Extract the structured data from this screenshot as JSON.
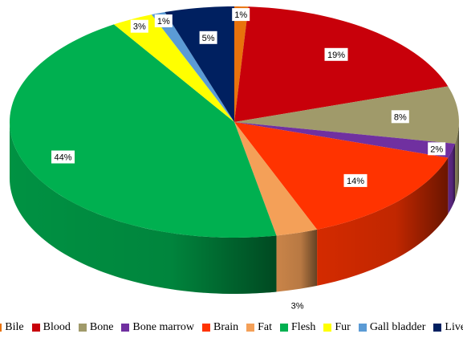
{
  "chart_data": {
    "type": "pie",
    "title": "",
    "three_d": true,
    "legend_position": "bottom",
    "slices": [
      {
        "name": "Bile",
        "value": 1,
        "label": "1%",
        "color": "#E8720C"
      },
      {
        "name": "Blood",
        "value": 19,
        "label": "19%",
        "color": "#C8000A"
      },
      {
        "name": "Bone",
        "value": 8,
        "label": "8%",
        "color": "#A09A6A"
      },
      {
        "name": "Bone marrow",
        "value": 2,
        "label": "2%",
        "color": "#7030A0"
      },
      {
        "name": "Brain",
        "value": 14,
        "label": "14%",
        "color": "#FF3300"
      },
      {
        "name": "Fat",
        "value": 3,
        "label": "3%",
        "color": "#F4A058"
      },
      {
        "name": "Flesh",
        "value": 44,
        "label": "44%",
        "color": "#00B050"
      },
      {
        "name": "Fur",
        "value": 3,
        "label": "3%",
        "color": "#FFFF00"
      },
      {
        "name": "Gall bladder",
        "value": 1,
        "label": "1%",
        "color": "#5B9BD5"
      },
      {
        "name": "Liver",
        "value": 5,
        "label": "5%",
        "color": "#002060"
      }
    ]
  }
}
